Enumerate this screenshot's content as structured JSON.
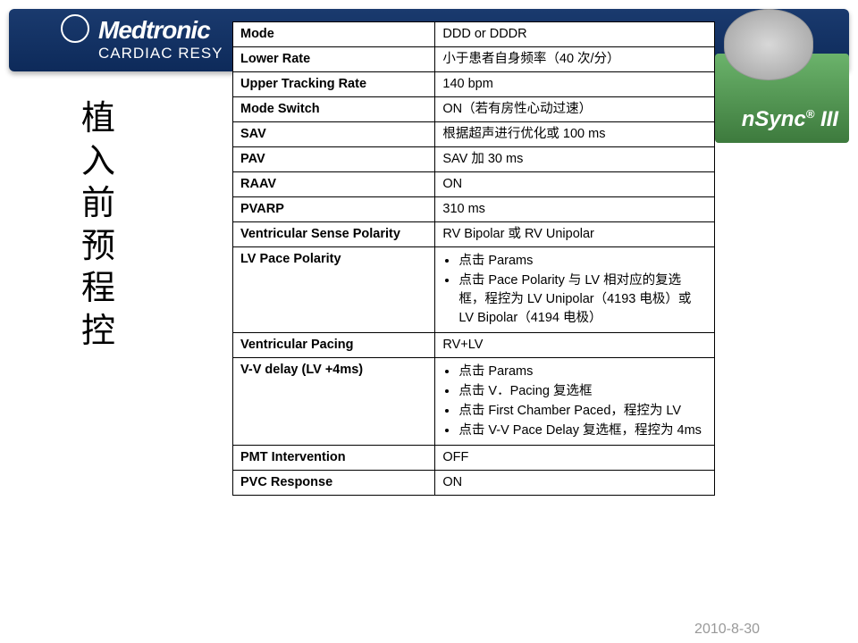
{
  "banner": {
    "brand": "Medtronic",
    "subtitle": "CARDIAC RESY"
  },
  "product_badge": {
    "prefix": "nSync",
    "reg": "®",
    "suffix": " III"
  },
  "side_title_chars": [
    "植",
    "入",
    "前",
    "预",
    "程",
    "控"
  ],
  "table": {
    "rows": [
      {
        "param": "Mode",
        "value_text": "DDD or DDDR"
      },
      {
        "param": "Lower Rate",
        "value_text": "小于患者自身频率（40 次/分）"
      },
      {
        "param": "Upper Tracking Rate",
        "value_text": "140 bpm"
      },
      {
        "param": "Mode Switch",
        "value_text": "ON（若有房性心动过速）"
      },
      {
        "param": "SAV",
        "value_text": "根据超声进行优化或 100 ms"
      },
      {
        "param": "PAV",
        "value_text": "SAV 加 30 ms"
      },
      {
        "param": "RAAV",
        "value_text": "ON"
      },
      {
        "param": "PVARP",
        "value_text": "310 ms"
      },
      {
        "param": "Ventricular Sense Polarity",
        "value_text": "RV Bipolar 或 RV Unipolar"
      },
      {
        "param": "LV Pace Polarity",
        "value_bullets": [
          "点击 Params",
          "点击 Pace Polarity 与 LV 相对应的复选框，程控为 LV Unipolar（4193 电极）或 LV Bipolar（4194 电极）"
        ]
      },
      {
        "param": "Ventricular  Pacing",
        "value_text": "RV+LV"
      },
      {
        "param": "V-V delay (LV +4ms)",
        "value_bullets": [
          "点击 Params",
          "点击 V．Pacing 复选框",
          "点击 First Chamber Paced，程控为 LV",
          "点击 V-V Pace Delay 复选框，程控为 4ms"
        ]
      },
      {
        "param": "PMT Intervention",
        "value_text": "OFF"
      },
      {
        "param": "PVC Response",
        "value_text": "ON"
      }
    ]
  },
  "footer_date": "2010-8-30",
  "colors": {
    "banner_bg_top": "#1a3a6e",
    "banner_bg_bottom": "#0d2a5a",
    "badge_green_top": "#6bb36b",
    "badge_green_bottom": "#3d7a3d",
    "border": "#000000",
    "footer_text": "#999999"
  },
  "typography": {
    "side_title_fontsize": 38,
    "table_fontsize": 14.5,
    "banner_brand_fontsize": 28
  }
}
